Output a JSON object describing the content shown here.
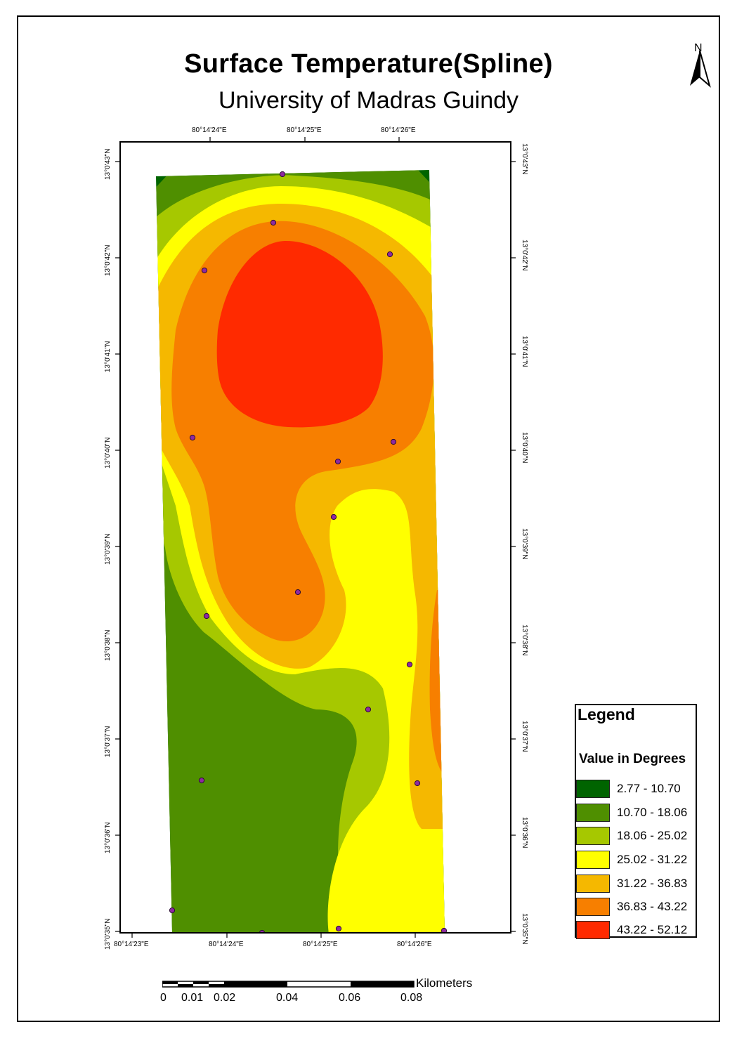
{
  "title": "Surface Temperature(Spline)",
  "subtitle": "University of Madras Guindy",
  "north_label": "N",
  "graticule": {
    "top_labels": [
      "80°14'24\"E",
      "80°14'25\"E",
      "80°14'26\"E"
    ],
    "bottom_labels": [
      "80°14'23\"E",
      "80°14'24\"E",
      "80°14'25\"E",
      "80°14'26\"E"
    ],
    "left_labels": [
      "13°0'43\"N",
      "13°0'42\"N",
      "13°0'41\"N",
      "13°0'40\"N",
      "13°0'39\"N",
      "13°0'38\"N",
      "13°0'37\"N",
      "13°0'36\"N",
      "13°0'35\"N"
    ],
    "right_labels": [
      "13°0'43\"N",
      "13°0'42\"N",
      "13°0'41\"N",
      "13°0'40\"N",
      "13°0'39\"N",
      "13°0'38\"N",
      "13°0'37\"N",
      "13°0'36\"N",
      "13°0'35\"N"
    ]
  },
  "legend": {
    "title": "Legend",
    "subtitle": "Value in Degrees",
    "classes": [
      {
        "label": "2.77 - 10.70",
        "color": "#006400"
      },
      {
        "label": "10.70 - 18.06",
        "color": "#4f8f00"
      },
      {
        "label": "18.06 - 25.02",
        "color": "#a6c800"
      },
      {
        "label": "25.02 - 31.22",
        "color": "#ffff00"
      },
      {
        "label": "31.22 - 36.83",
        "color": "#f5b800"
      },
      {
        "label": "36.83 - 43.22",
        "color": "#f77f00"
      },
      {
        "label": "43.22 - 52.12",
        "color": "#ff2a00"
      }
    ]
  },
  "scale_bar": {
    "unit": "Kilometers",
    "labels": [
      "0",
      "0.01",
      "0.02",
      "0.04",
      "0.06",
      "0.08"
    ]
  },
  "colors": {
    "sample_point": "#8e2aa0"
  }
}
